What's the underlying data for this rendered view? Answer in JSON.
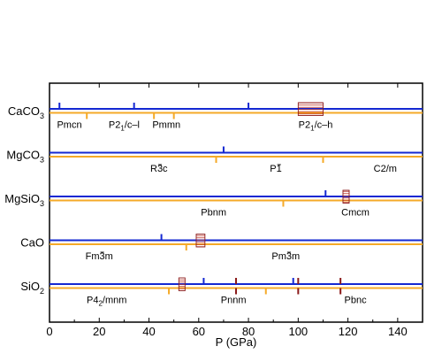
{
  "chart_data": {
    "type": "timeline",
    "xlabel": "P (GPa)",
    "xlim": [
      0,
      150
    ],
    "x_ticks": [
      "0",
      "20",
      "40",
      "60",
      "80",
      "100",
      "120",
      "140"
    ],
    "grid": false,
    "colors": {
      "blue": "#1428d2",
      "orange": "#f5aa28",
      "darkred": "#8b1a1a",
      "hatch": "#c0392b"
    },
    "rows": [
      {
        "name": "CaCO3",
        "label_main": "CaCO",
        "label_sub": "3",
        "blue_ticks": [
          4,
          34,
          80
        ],
        "orange_ticks": [
          15,
          42,
          50
        ],
        "red_ticks": [],
        "boxes": [
          {
            "from": 100,
            "to": 110
          }
        ],
        "phases": [
          {
            "x": 8,
            "main": "Pmcn",
            "sub": "",
            "rest": "",
            "bar": false
          },
          {
            "x": 30,
            "main": "P2",
            "sub": "1",
            "rest": "/c–l",
            "bar": false
          },
          {
            "x": 47,
            "main": "Pmmn",
            "sub": "",
            "rest": "",
            "bar": false
          },
          {
            "x": 107,
            "main": "P2",
            "sub": "1",
            "rest": "/c–h",
            "bar": false
          }
        ]
      },
      {
        "name": "MgCO3",
        "label_main": "MgCO",
        "label_sub": "3",
        "blue_ticks": [
          70
        ],
        "orange_ticks": [
          67,
          110
        ],
        "red_ticks": [],
        "boxes": [],
        "phases": [
          {
            "x": 44,
            "main": "R3c",
            "sub": "",
            "rest": "",
            "bar": true
          },
          {
            "x": 91,
            "main": "P1",
            "sub": "",
            "rest": "",
            "bar": true
          },
          {
            "x": 135,
            "main": "C2/m",
            "sub": "",
            "rest": "",
            "bar": false
          }
        ]
      },
      {
        "name": "MgSiO3",
        "label_main": "MgSiO",
        "label_sub": "3",
        "blue_ticks": [
          111
        ],
        "orange_ticks": [
          94
        ],
        "red_ticks": [],
        "boxes": [
          {
            "from": 118,
            "to": 120.5
          }
        ],
        "phases": [
          {
            "x": 66,
            "main": "Pbnm",
            "sub": "",
            "rest": "",
            "bar": false
          },
          {
            "x": 123,
            "main": "Cmcm",
            "sub": "",
            "rest": "",
            "bar": false
          }
        ]
      },
      {
        "name": "CaO",
        "label_main": "CaO",
        "label_sub": "",
        "blue_ticks": [
          45
        ],
        "orange_ticks": [
          55
        ],
        "red_ticks": [],
        "boxes": [
          {
            "from": 59,
            "to": 62.5
          }
        ],
        "phases": [
          {
            "x": 20,
            "main": "Fm3m",
            "sub": "",
            "rest": "",
            "bar": true
          },
          {
            "x": 95,
            "main": "Pm3m",
            "sub": "",
            "rest": "",
            "bar": true
          }
        ]
      },
      {
        "name": "SiO2",
        "label_main": "SiO",
        "label_sub": "2",
        "blue_ticks": [
          62,
          98
        ],
        "orange_ticks": [
          48,
          87
        ],
        "red_ticks": [
          75,
          100,
          117
        ],
        "boxes": [
          {
            "from": 52,
            "to": 54.5
          }
        ],
        "phases": [
          {
            "x": 23,
            "main": "P4",
            "sub": "2",
            "rest": "/mnm",
            "bar": false
          },
          {
            "x": 74,
            "main": "Pnnm",
            "sub": "",
            "rest": "",
            "bar": false
          },
          {
            "x": 123,
            "main": "Pbnc",
            "sub": "",
            "rest": "",
            "bar": false
          }
        ]
      }
    ]
  }
}
